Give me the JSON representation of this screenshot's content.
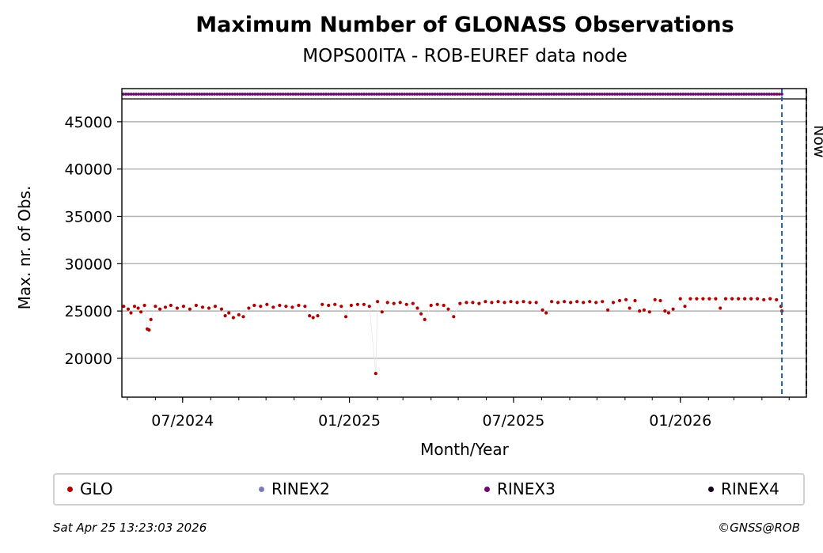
{
  "chart_data": {
    "type": "scatter",
    "title": "Maximum Number of GLONASS Observations",
    "subtitle": "MOPS00ITA - ROB-EUREF data node",
    "xlabel": "Month/Year",
    "ylabel": "Max. nr. of Obs.",
    "x_type": "date",
    "xlim": [
      "2024-04-25",
      "2026-05-20"
    ],
    "ylim": [
      15900,
      48500
    ],
    "yticks": [
      20000,
      25000,
      30000,
      35000,
      40000,
      45000
    ],
    "xticks": [
      {
        "date": "2024-07-01",
        "label": "07/2024"
      },
      {
        "date": "2025-01-01",
        "label": "01/2025"
      },
      {
        "date": "2025-07-01",
        "label": "07/2025"
      },
      {
        "date": "2026-01-01",
        "label": "01/2026"
      }
    ],
    "grid": "horizontal",
    "legend_position": "bottom",
    "series": [
      {
        "name": "GLO",
        "color": "#b00000",
        "points": [
          [
            "2024-04-27",
            25500
          ],
          [
            "2024-05-02",
            25200
          ],
          [
            "2024-05-05",
            24800
          ],
          [
            "2024-05-09",
            25500
          ],
          [
            "2024-05-13",
            25300
          ],
          [
            "2024-05-16",
            24900
          ],
          [
            "2024-05-20",
            25600
          ],
          [
            "2024-05-23",
            23100
          ],
          [
            "2024-05-25",
            23000
          ],
          [
            "2024-05-27",
            24100
          ],
          [
            "2024-06-01",
            25500
          ],
          [
            "2024-06-06",
            25200
          ],
          [
            "2024-06-12",
            25400
          ],
          [
            "2024-06-18",
            25600
          ],
          [
            "2024-06-25",
            25300
          ],
          [
            "2024-07-02",
            25500
          ],
          [
            "2024-07-09",
            25200
          ],
          [
            "2024-07-16",
            25600
          ],
          [
            "2024-07-23",
            25400
          ],
          [
            "2024-07-30",
            25300
          ],
          [
            "2024-08-06",
            25500
          ],
          [
            "2024-08-13",
            25200
          ],
          [
            "2024-08-17",
            24500
          ],
          [
            "2024-08-21",
            24800
          ],
          [
            "2024-08-26",
            24300
          ],
          [
            "2024-09-01",
            24600
          ],
          [
            "2024-09-06",
            24400
          ],
          [
            "2024-09-12",
            25300
          ],
          [
            "2024-09-18",
            25600
          ],
          [
            "2024-09-25",
            25500
          ],
          [
            "2024-10-02",
            25700
          ],
          [
            "2024-10-09",
            25400
          ],
          [
            "2024-10-16",
            25600
          ],
          [
            "2024-10-23",
            25500
          ],
          [
            "2024-10-30",
            25400
          ],
          [
            "2024-11-06",
            25600
          ],
          [
            "2024-11-13",
            25500
          ],
          [
            "2024-11-18",
            24500
          ],
          [
            "2024-11-22",
            24300
          ],
          [
            "2024-11-27",
            24500
          ],
          [
            "2024-12-02",
            25700
          ],
          [
            "2024-12-09",
            25600
          ],
          [
            "2024-12-16",
            25700
          ],
          [
            "2024-12-23",
            25500
          ],
          [
            "2024-12-28",
            24400
          ],
          [
            "2025-01-03",
            25600
          ],
          [
            "2025-01-10",
            25700
          ],
          [
            "2025-01-17",
            25700
          ],
          [
            "2025-01-23",
            25500
          ],
          [
            "2025-01-30",
            18400
          ],
          [
            "2025-02-01",
            26000
          ],
          [
            "2025-02-06",
            24900
          ],
          [
            "2025-02-12",
            25900
          ],
          [
            "2025-02-19",
            25800
          ],
          [
            "2025-02-26",
            25900
          ],
          [
            "2025-03-05",
            25700
          ],
          [
            "2025-03-12",
            25800
          ],
          [
            "2025-03-17",
            25300
          ],
          [
            "2025-03-21",
            24700
          ],
          [
            "2025-03-25",
            24100
          ],
          [
            "2025-04-01",
            25600
          ],
          [
            "2025-04-08",
            25700
          ],
          [
            "2025-04-15",
            25600
          ],
          [
            "2025-04-20",
            25200
          ],
          [
            "2025-04-26",
            24400
          ],
          [
            "2025-05-03",
            25800
          ],
          [
            "2025-05-10",
            25900
          ],
          [
            "2025-05-17",
            25900
          ],
          [
            "2025-05-24",
            25800
          ],
          [
            "2025-05-31",
            26000
          ],
          [
            "2025-06-07",
            25900
          ],
          [
            "2025-06-14",
            26000
          ],
          [
            "2025-06-21",
            25900
          ],
          [
            "2025-06-28",
            26000
          ],
          [
            "2025-07-05",
            25900
          ],
          [
            "2025-07-12",
            26000
          ],
          [
            "2025-07-19",
            25900
          ],
          [
            "2025-07-26",
            25900
          ],
          [
            "2025-08-02",
            25100
          ],
          [
            "2025-08-06",
            24800
          ],
          [
            "2025-08-12",
            26000
          ],
          [
            "2025-08-19",
            25900
          ],
          [
            "2025-08-26",
            26000
          ],
          [
            "2025-09-02",
            25900
          ],
          [
            "2025-09-09",
            26000
          ],
          [
            "2025-09-16",
            25900
          ],
          [
            "2025-09-23",
            26000
          ],
          [
            "2025-09-30",
            25900
          ],
          [
            "2025-10-07",
            26000
          ],
          [
            "2025-10-13",
            25100
          ],
          [
            "2025-10-19",
            25900
          ],
          [
            "2025-10-26",
            26100
          ],
          [
            "2025-11-02",
            26200
          ],
          [
            "2025-11-06",
            25300
          ],
          [
            "2025-11-12",
            26100
          ],
          [
            "2025-11-17",
            25000
          ],
          [
            "2025-11-22",
            25100
          ],
          [
            "2025-11-28",
            24900
          ],
          [
            "2025-12-04",
            26200
          ],
          [
            "2025-12-10",
            26100
          ],
          [
            "2025-12-15",
            25000
          ],
          [
            "2025-12-19",
            24800
          ],
          [
            "2025-12-24",
            25200
          ],
          [
            "2026-01-01",
            26300
          ],
          [
            "2026-01-06",
            25500
          ],
          [
            "2026-01-12",
            26300
          ],
          [
            "2026-01-19",
            26300
          ],
          [
            "2026-01-26",
            26300
          ],
          [
            "2026-02-02",
            26300
          ],
          [
            "2026-02-09",
            26300
          ],
          [
            "2026-02-14",
            25300
          ],
          [
            "2026-02-20",
            26300
          ],
          [
            "2026-02-27",
            26300
          ],
          [
            "2026-03-06",
            26300
          ],
          [
            "2026-03-13",
            26300
          ],
          [
            "2026-03-20",
            26300
          ],
          [
            "2026-03-27",
            26300
          ],
          [
            "2026-04-03",
            26200
          ],
          [
            "2026-04-10",
            26300
          ],
          [
            "2026-04-17",
            26200
          ],
          [
            "2026-04-22",
            25500
          ],
          [
            "2026-04-23",
            25000
          ]
        ]
      },
      {
        "name": "RINEX2",
        "color": "#7b7bbb",
        "points": []
      },
      {
        "name": "RINEX3",
        "color": "#6a0a6a",
        "band_value": "strip above plot",
        "range": [
          "2024-04-25",
          "2026-04-23"
        ]
      },
      {
        "name": "RINEX4",
        "color": "#1a0020",
        "points": []
      }
    ],
    "vlines": [
      {
        "date": "2026-04-23",
        "style": "dashed",
        "color": "#1f5fa8",
        "label": ""
      },
      {
        "date": "2026-05-20",
        "style": "dashed",
        "color": "#000000",
        "label": "Now"
      }
    ]
  },
  "legend": [
    {
      "label": "GLO",
      "color": "#b00000"
    },
    {
      "label": "RINEX2",
      "color": "#7b7bbb"
    },
    {
      "label": "RINEX3",
      "color": "#6a0a6a"
    },
    {
      "label": "RINEX4",
      "color": "#1a0020"
    }
  ],
  "footer": {
    "timestamp": "Sat Apr 25 13:23:03 2026",
    "copyright": "©GNSS@ROB"
  }
}
